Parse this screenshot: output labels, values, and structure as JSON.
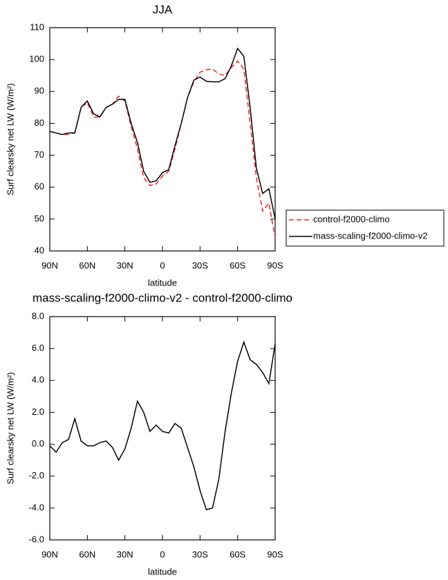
{
  "chart_data": [
    {
      "type": "line",
      "title": "JJA",
      "xlabel": "latitude",
      "ylabel": "Surf clearsky net LW (W/m²)",
      "x": [
        90,
        85,
        80,
        75,
        70,
        65,
        60,
        55,
        50,
        45,
        40,
        35,
        30,
        25,
        20,
        15,
        10,
        5,
        0,
        -5,
        -10,
        -15,
        -20,
        -25,
        -30,
        -35,
        -40,
        -45,
        -50,
        -55,
        -60,
        -65,
        -70,
        -75,
        -80,
        -85,
        -90
      ],
      "series": [
        {
          "name": "control-f2000-climo",
          "color": "#e8262b",
          "dash": true,
          "values": [
            77.5,
            77,
            76.5,
            76.5,
            77,
            85,
            86.5,
            82,
            82,
            85,
            86,
            88.5,
            87,
            79,
            72,
            63,
            60.5,
            61,
            63.5,
            65,
            72,
            80,
            88,
            93,
            96,
            96.8,
            97,
            95.5,
            95,
            97.5,
            99.5,
            97,
            80,
            63,
            52.5,
            55,
            44
          ]
        },
        {
          "name": "mass-scaling-f2000-climo-v2",
          "color": "#000000",
          "dash": false,
          "values": [
            77.5,
            77,
            76.5,
            77,
            77,
            85,
            87,
            83,
            82,
            85,
            86,
            87.5,
            87.5,
            80,
            74,
            65,
            61.5,
            62,
            64.5,
            65.5,
            73,
            80,
            88,
            93.5,
            94.5,
            93.2,
            93,
            93,
            94,
            98,
            103.5,
            101,
            85,
            66,
            58,
            59.5,
            50
          ]
        }
      ],
      "xlim": [
        90,
        -90
      ],
      "xticks": [
        {
          "value": 90,
          "label": "90N"
        },
        {
          "value": 60,
          "label": "60N"
        },
        {
          "value": 30,
          "label": "30N"
        },
        0,
        {
          "value": -30,
          "label": "30S"
        },
        {
          "value": -60,
          "label": "60S"
        },
        {
          "value": -90,
          "label": "90S"
        }
      ],
      "ylim": [
        40,
        110
      ],
      "yticks": [
        40,
        50,
        60,
        70,
        80,
        90,
        100,
        110
      ],
      "legend": "outside-right-bottom"
    },
    {
      "type": "line",
      "title": "mass-scaling-f2000-climo-v2 - control-f2000-climo",
      "xlabel": "latitude",
      "ylabel": "Surf clearsky net LW (W/m²)",
      "x": [
        90,
        85,
        80,
        75,
        70,
        65,
        60,
        55,
        50,
        45,
        40,
        35,
        30,
        25,
        20,
        15,
        10,
        5,
        0,
        -5,
        -10,
        -15,
        -20,
        -25,
        -30,
        -35,
        -40,
        -45,
        -50,
        -55,
        -60,
        -65,
        -70,
        -75,
        -80,
        -85,
        -90
      ],
      "series": [
        {
          "color": "#000000",
          "dash": false,
          "values": [
            -0.1,
            -0.5,
            0.1,
            0.3,
            1.6,
            0.2,
            -0.1,
            -0.1,
            0.1,
            0.2,
            -0.2,
            -1.0,
            -0.3,
            1.0,
            2.7,
            2.0,
            0.8,
            1.2,
            0.8,
            0.7,
            1.3,
            1.0,
            -0.2,
            -1.4,
            -2.9,
            -4.1,
            -4.0,
            -2.2,
            0.8,
            3.2,
            5.2,
            6.4,
            5.3,
            5.0,
            4.5,
            3.8,
            6.3
          ]
        }
      ],
      "xlim": [
        90,
        -90
      ],
      "xticks": [
        {
          "value": 90,
          "label": "90N"
        },
        {
          "value": 60,
          "label": "60N"
        },
        {
          "value": 30,
          "label": "30N"
        },
        0,
        {
          "value": -30,
          "label": "30S"
        },
        {
          "value": -60,
          "label": "60S"
        },
        {
          "value": -90,
          "label": "90S"
        }
      ],
      "ylim": [
        -6,
        8
      ],
      "yticks": [
        {
          "value": -6,
          "label": "-6.0"
        },
        {
          "value": -4,
          "label": "-4.0"
        },
        {
          "value": -2,
          "label": "-2.0"
        },
        {
          "value": 0,
          "label": "0.0"
        },
        {
          "value": 2,
          "label": "2.0"
        },
        {
          "value": 4,
          "label": "4.0"
        },
        {
          "value": 6,
          "label": "6.0"
        },
        {
          "value": 8,
          "label": "8.0"
        }
      ]
    }
  ]
}
